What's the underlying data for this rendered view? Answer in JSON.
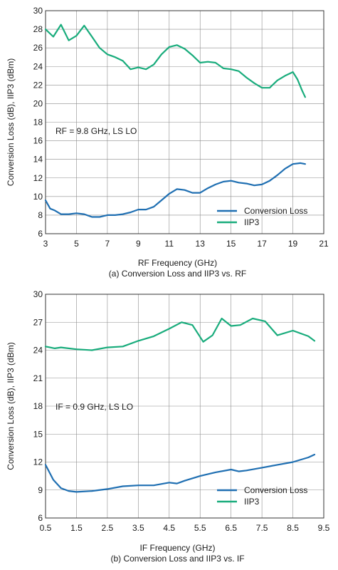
{
  "chart_data": [
    {
      "type": "line",
      "xlabel": "RF Frequency (GHz)",
      "ylabel": "Conversion Loss (dB), IIP3 (dBm)",
      "caption": "(a) Conversion Loss and IIP3 vs. RF",
      "annotation": "RF = 9.8 GHz, LS LO",
      "xlim": [
        3,
        21
      ],
      "ylim": [
        6,
        30
      ],
      "xticks": [
        3,
        5,
        7,
        9,
        11,
        13,
        15,
        17,
        19,
        21
      ],
      "yticks": [
        6,
        8,
        10,
        12,
        14,
        16,
        18,
        20,
        22,
        24,
        26,
        28,
        30
      ],
      "grid": true,
      "legend": "bottom-right",
      "series": [
        {
          "name": "Conversion Loss",
          "color": "#1f6fb2",
          "points": [
            [
              3.0,
              9.6
            ],
            [
              3.3,
              8.7
            ],
            [
              3.6,
              8.5
            ],
            [
              4.0,
              8.1
            ],
            [
              4.5,
              8.1
            ],
            [
              5.0,
              8.2
            ],
            [
              5.5,
              8.1
            ],
            [
              6.0,
              7.8
            ],
            [
              6.5,
              7.8
            ],
            [
              7.0,
              8.0
            ],
            [
              7.5,
              8.0
            ],
            [
              8.0,
              8.1
            ],
            [
              8.5,
              8.3
            ],
            [
              9.0,
              8.6
            ],
            [
              9.5,
              8.6
            ],
            [
              10.0,
              8.9
            ],
            [
              10.5,
              9.6
            ],
            [
              11.0,
              10.3
            ],
            [
              11.5,
              10.8
            ],
            [
              12.0,
              10.7
            ],
            [
              12.5,
              10.4
            ],
            [
              13.0,
              10.4
            ],
            [
              13.5,
              10.9
            ],
            [
              14.0,
              11.3
            ],
            [
              14.5,
              11.6
            ],
            [
              15.0,
              11.7
            ],
            [
              15.5,
              11.5
            ],
            [
              16.0,
              11.4
            ],
            [
              16.5,
              11.2
            ],
            [
              17.0,
              11.3
            ],
            [
              17.5,
              11.7
            ],
            [
              18.0,
              12.3
            ],
            [
              18.5,
              13.0
            ],
            [
              19.0,
              13.5
            ],
            [
              19.5,
              13.6
            ],
            [
              19.8,
              13.5
            ]
          ]
        },
        {
          "name": "IIP3",
          "color": "#19ac7c",
          "points": [
            [
              3.0,
              28.0
            ],
            [
              3.5,
              27.2
            ],
            [
              4.0,
              28.5
            ],
            [
              4.5,
              26.8
            ],
            [
              5.0,
              27.3
            ],
            [
              5.5,
              28.4
            ],
            [
              6.0,
              27.2
            ],
            [
              6.5,
              26.0
            ],
            [
              7.0,
              25.3
            ],
            [
              7.5,
              25.0
            ],
            [
              8.0,
              24.6
            ],
            [
              8.5,
              23.7
            ],
            [
              9.0,
              23.9
            ],
            [
              9.5,
              23.7
            ],
            [
              10.0,
              24.2
            ],
            [
              10.5,
              25.3
            ],
            [
              11.0,
              26.1
            ],
            [
              11.5,
              26.3
            ],
            [
              12.0,
              25.9
            ],
            [
              12.5,
              25.2
            ],
            [
              13.0,
              24.4
            ],
            [
              13.5,
              24.5
            ],
            [
              14.0,
              24.4
            ],
            [
              14.5,
              23.8
            ],
            [
              15.0,
              23.7
            ],
            [
              15.5,
              23.5
            ],
            [
              16.0,
              22.8
            ],
            [
              16.5,
              22.2
            ],
            [
              17.0,
              21.7
            ],
            [
              17.5,
              21.7
            ],
            [
              18.0,
              22.5
            ],
            [
              18.5,
              23.0
            ],
            [
              19.0,
              23.4
            ],
            [
              19.3,
              22.6
            ],
            [
              19.6,
              21.4
            ],
            [
              19.8,
              20.7
            ]
          ]
        }
      ]
    },
    {
      "type": "line",
      "xlabel": "IF Frequency (GHz)",
      "ylabel": "Conversion Loss (dB), IIP3 (dBm)",
      "caption": "(b) Conversion Loss and IIP3 vs. IF",
      "annotation": "IF = 0.9 GHz, LS LO",
      "xlim": [
        0.5,
        9.5
      ],
      "ylim": [
        6,
        30
      ],
      "xticks": [
        0.5,
        1.5,
        2.5,
        3.5,
        4.5,
        5.5,
        6.5,
        7.5,
        8.5,
        9.5
      ],
      "yticks": [
        6,
        9,
        12,
        15,
        18,
        21,
        24,
        27,
        30
      ],
      "grid": true,
      "legend": "bottom-right",
      "series": [
        {
          "name": "Conversion Loss",
          "color": "#1f6fb2",
          "points": [
            [
              0.5,
              11.7
            ],
            [
              0.75,
              10.1
            ],
            [
              1.0,
              9.2
            ],
            [
              1.25,
              8.9
            ],
            [
              1.5,
              8.8
            ],
            [
              2.0,
              8.9
            ],
            [
              2.5,
              9.1
            ],
            [
              3.0,
              9.4
            ],
            [
              3.5,
              9.5
            ],
            [
              4.0,
              9.5
            ],
            [
              4.5,
              9.8
            ],
            [
              4.75,
              9.7
            ],
            [
              5.0,
              10.0
            ],
            [
              5.5,
              10.5
            ],
            [
              6.0,
              10.9
            ],
            [
              6.5,
              11.2
            ],
            [
              6.75,
              11.0
            ],
            [
              7.0,
              11.1
            ],
            [
              7.5,
              11.4
            ],
            [
              8.0,
              11.7
            ],
            [
              8.5,
              12.0
            ],
            [
              9.0,
              12.5
            ],
            [
              9.2,
              12.8
            ]
          ]
        },
        {
          "name": "IIP3",
          "color": "#19ac7c",
          "points": [
            [
              0.5,
              24.4
            ],
            [
              0.8,
              24.2
            ],
            [
              1.0,
              24.3
            ],
            [
              1.5,
              24.1
            ],
            [
              2.0,
              24.0
            ],
            [
              2.5,
              24.3
            ],
            [
              3.0,
              24.4
            ],
            [
              3.5,
              25.0
            ],
            [
              4.0,
              25.5
            ],
            [
              4.5,
              26.3
            ],
            [
              4.9,
              27.0
            ],
            [
              5.25,
              26.7
            ],
            [
              5.6,
              24.9
            ],
            [
              5.9,
              25.6
            ],
            [
              6.2,
              27.4
            ],
            [
              6.5,
              26.6
            ],
            [
              6.8,
              26.7
            ],
            [
              7.2,
              27.4
            ],
            [
              7.6,
              27.1
            ],
            [
              8.0,
              25.6
            ],
            [
              8.5,
              26.1
            ],
            [
              9.0,
              25.5
            ],
            [
              9.2,
              25.0
            ]
          ]
        }
      ]
    }
  ]
}
